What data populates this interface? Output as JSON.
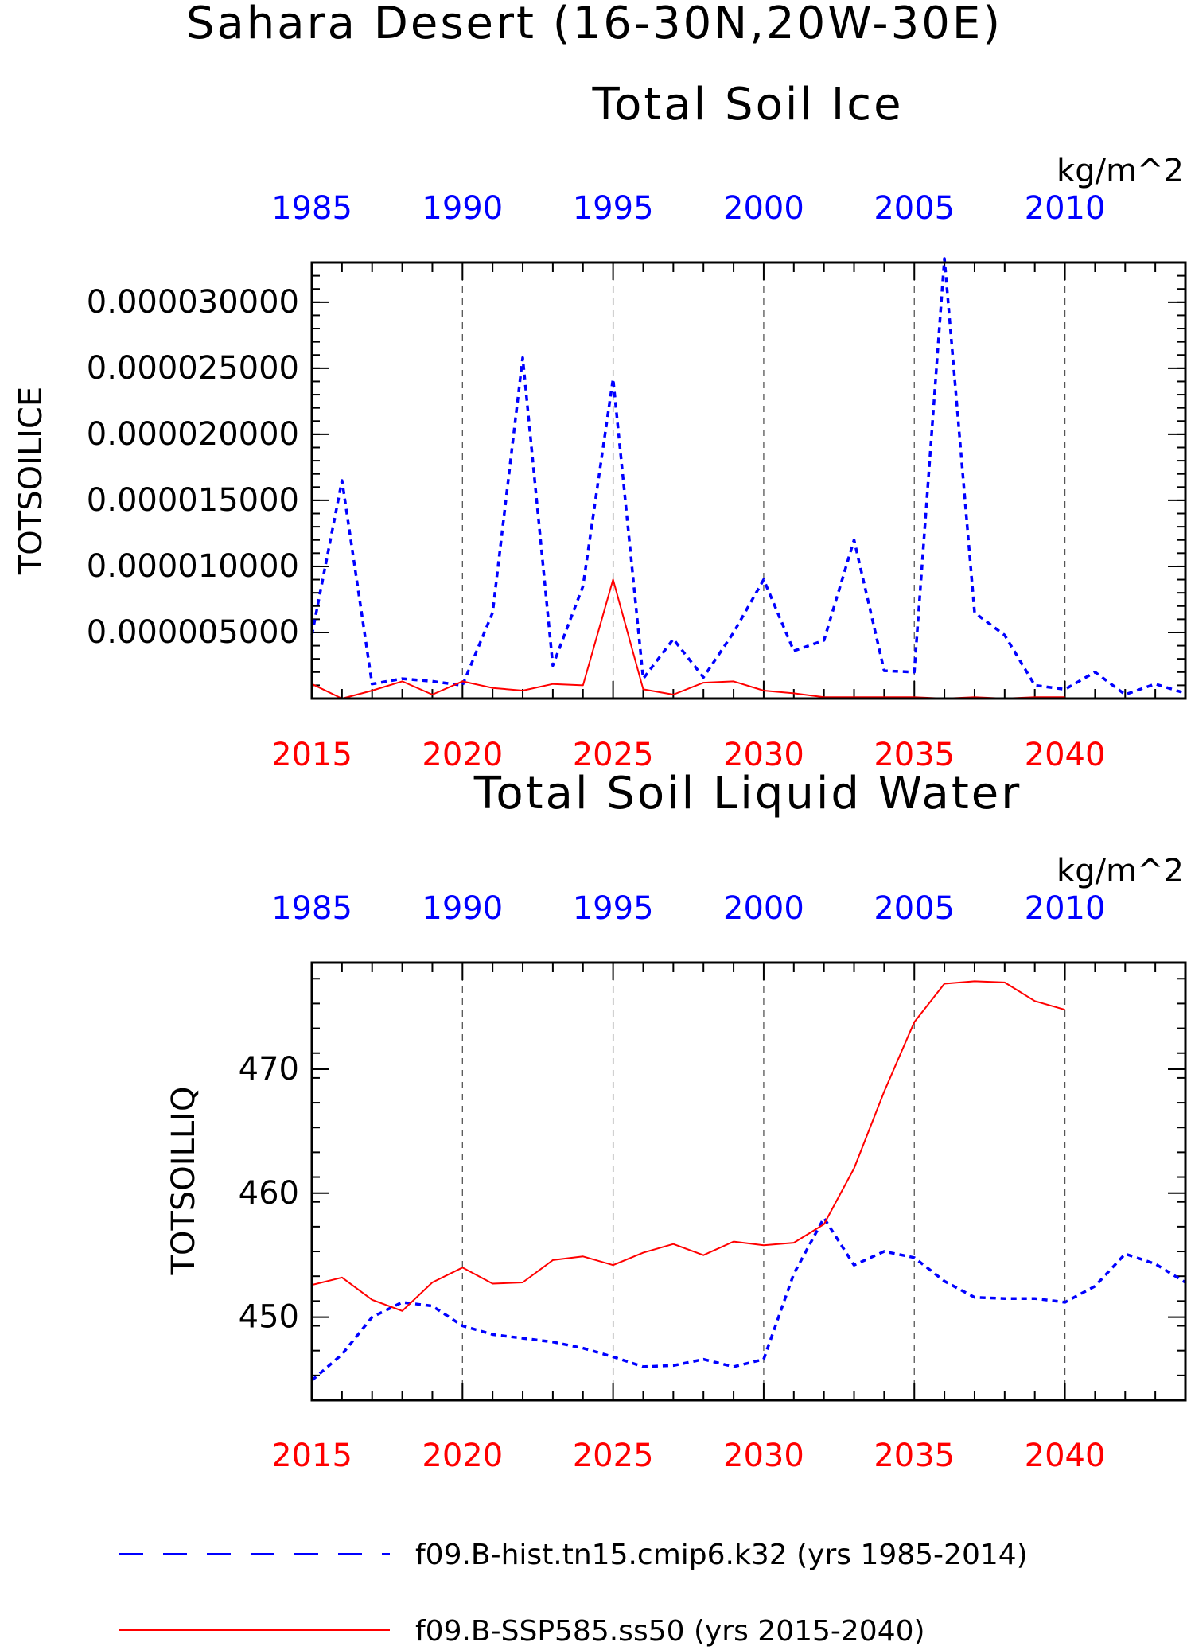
{
  "figure": {
    "title": "Sahara Desert (16-30N,20W-30E)"
  },
  "colors": {
    "hist": "#0000ff",
    "ssp": "#ff0000",
    "axis": "#000000",
    "grid": "#555555"
  },
  "legend": {
    "items": [
      {
        "label": "f09.B-hist.tn15.cmip6.k32 (yrs 1985-2014)",
        "color": "#0000ff",
        "style": "dashed"
      },
      {
        "label": "f09.B-SSP585.ss50 (yrs 2015-2040)",
        "color": "#ff0000",
        "style": "solid"
      }
    ]
  },
  "chart_data": [
    {
      "type": "line",
      "title": "Total Soil Ice",
      "ylabel": "TOTSOILICE",
      "units": "kg/m^2",
      "ylim": [
        0,
        3.3e-05
      ],
      "yticks": [
        5e-06,
        1e-05,
        1.5e-05,
        2e-05,
        2.5e-05,
        3e-05
      ],
      "ytick_labels": [
        "0.000005000",
        "0.000010000",
        "0.000015000",
        "0.000020000",
        "0.000025000",
        "0.000030000"
      ],
      "bottom_axis": {
        "range": [
          2015,
          2044
        ],
        "tick_labels": [
          "2015",
          "2020",
          "2025",
          "2030",
          "2035",
          "2040"
        ],
        "color": "#ff0000"
      },
      "top_axis": {
        "range": [
          1985,
          2014
        ],
        "tick_labels": [
          "1985",
          "1990",
          "1995",
          "2000",
          "2005",
          "2010"
        ],
        "color": "#0000ff"
      },
      "grid": "vertical dashed at 5-year ticks",
      "series": [
        {
          "name": "f09.B-hist.tn15.cmip6.k32 (yrs 1985-2014)",
          "axis": "top",
          "style": "dashed",
          "color": "#0000ff",
          "x": [
            1985,
            1986,
            1987,
            1988,
            1989,
            1990,
            1991,
            1992,
            1993,
            1994,
            1995,
            1996,
            1997,
            1998,
            1999,
            2000,
            2001,
            2002,
            2003,
            2004,
            2005,
            2006,
            2007,
            2008,
            2009,
            2010,
            2011,
            2012,
            2013,
            2014
          ],
          "y": [
            4.8e-06,
            1.65e-05,
            1.1e-06,
            1.5e-06,
            1.3e-06,
            1e-06,
            6.5e-06,
            2.58e-05,
            2.5e-06,
            8.5e-06,
            2.42e-05,
            1.5e-06,
            4.5e-06,
            1.6e-06,
            5e-06,
            9e-06,
            3.6e-06,
            4.4e-06,
            1.2e-05,
            2.1e-06,
            2e-06,
            3.33e-05,
            6.5e-06,
            4.8e-06,
            1e-06,
            7e-07,
            2e-06,
            3e-07,
            1.1e-06,
            4e-07
          ]
        },
        {
          "name": "f09.B-SSP585.ss50 (yrs 2015-2040)",
          "axis": "bottom",
          "style": "solid",
          "color": "#ff0000",
          "x": [
            2015,
            2016,
            2017,
            2018,
            2019,
            2020,
            2021,
            2022,
            2023,
            2024,
            2025,
            2026,
            2027,
            2028,
            2029,
            2030,
            2031,
            2032,
            2033,
            2034,
            2035,
            2036,
            2037,
            2038,
            2039,
            2040
          ],
          "y": [
            1.1e-06,
            0.0,
            6e-07,
            1.3e-06,
            3e-07,
            1.3e-06,
            8e-07,
            6e-07,
            1.1e-06,
            1e-06,
            9e-06,
            7e-07,
            3e-07,
            1.2e-06,
            1.3e-06,
            6e-07,
            4e-07,
            1e-07,
            1e-07,
            1e-07,
            1e-07,
            0.0,
            1e-07,
            0.0,
            1e-07,
            1e-07
          ]
        }
      ]
    },
    {
      "type": "line",
      "title": "Total Soil Liquid Water",
      "ylabel": "TOTSOILLIQ",
      "units": "kg/m^2",
      "ylim": [
        443.3,
        478.6
      ],
      "yticks": [
        450,
        460,
        470
      ],
      "ytick_labels": [
        "450",
        "460",
        "470"
      ],
      "bottom_axis": {
        "range": [
          2015,
          2044
        ],
        "tick_labels": [
          "2015",
          "2020",
          "2025",
          "2030",
          "2035",
          "2040"
        ],
        "color": "#ff0000"
      },
      "top_axis": {
        "range": [
          1985,
          2014
        ],
        "tick_labels": [
          "1985",
          "1990",
          "1995",
          "2000",
          "2005",
          "2010"
        ],
        "color": "#0000ff"
      },
      "grid": "vertical dashed at 5-year ticks",
      "series": [
        {
          "name": "f09.B-hist.tn15.cmip6.k32 (yrs 1985-2014)",
          "axis": "top",
          "style": "dashed",
          "color": "#0000ff",
          "x": [
            1985,
            1986,
            1987,
            1988,
            1989,
            1990,
            1991,
            1992,
            1993,
            1994,
            1995,
            1996,
            1997,
            1998,
            1999,
            2000,
            2001,
            2002,
            2003,
            2004,
            2005,
            2006,
            2007,
            2008,
            2009,
            2010,
            2011,
            2012,
            2013,
            2014
          ],
          "y": [
            444.9,
            447.0,
            450.0,
            451.2,
            450.9,
            449.3,
            448.6,
            448.3,
            448.0,
            447.5,
            446.8,
            446.0,
            446.1,
            446.6,
            446.0,
            446.6,
            453.5,
            458.0,
            454.2,
            455.3,
            454.8,
            452.9,
            451.6,
            451.5,
            451.5,
            451.2,
            452.5,
            455.1,
            454.3,
            452.8
          ]
        },
        {
          "name": "f09.B-SSP585.ss50 (yrs 2015-2040)",
          "axis": "bottom",
          "style": "solid",
          "color": "#ff0000",
          "x": [
            2015,
            2016,
            2017,
            2018,
            2019,
            2020,
            2021,
            2022,
            2023,
            2024,
            2025,
            2026,
            2027,
            2028,
            2029,
            2030,
            2031,
            2032,
            2033,
            2034,
            2035,
            2036,
            2037,
            2038,
            2039,
            2040
          ],
          "y": [
            452.6,
            453.2,
            451.4,
            450.5,
            452.8,
            454.0,
            452.7,
            452.8,
            454.6,
            454.9,
            454.2,
            455.2,
            455.9,
            455.0,
            456.1,
            455.8,
            456.0,
            457.5,
            462.0,
            468.2,
            473.8,
            476.9,
            477.1,
            477.0,
            475.5,
            474.8
          ]
        }
      ]
    }
  ]
}
